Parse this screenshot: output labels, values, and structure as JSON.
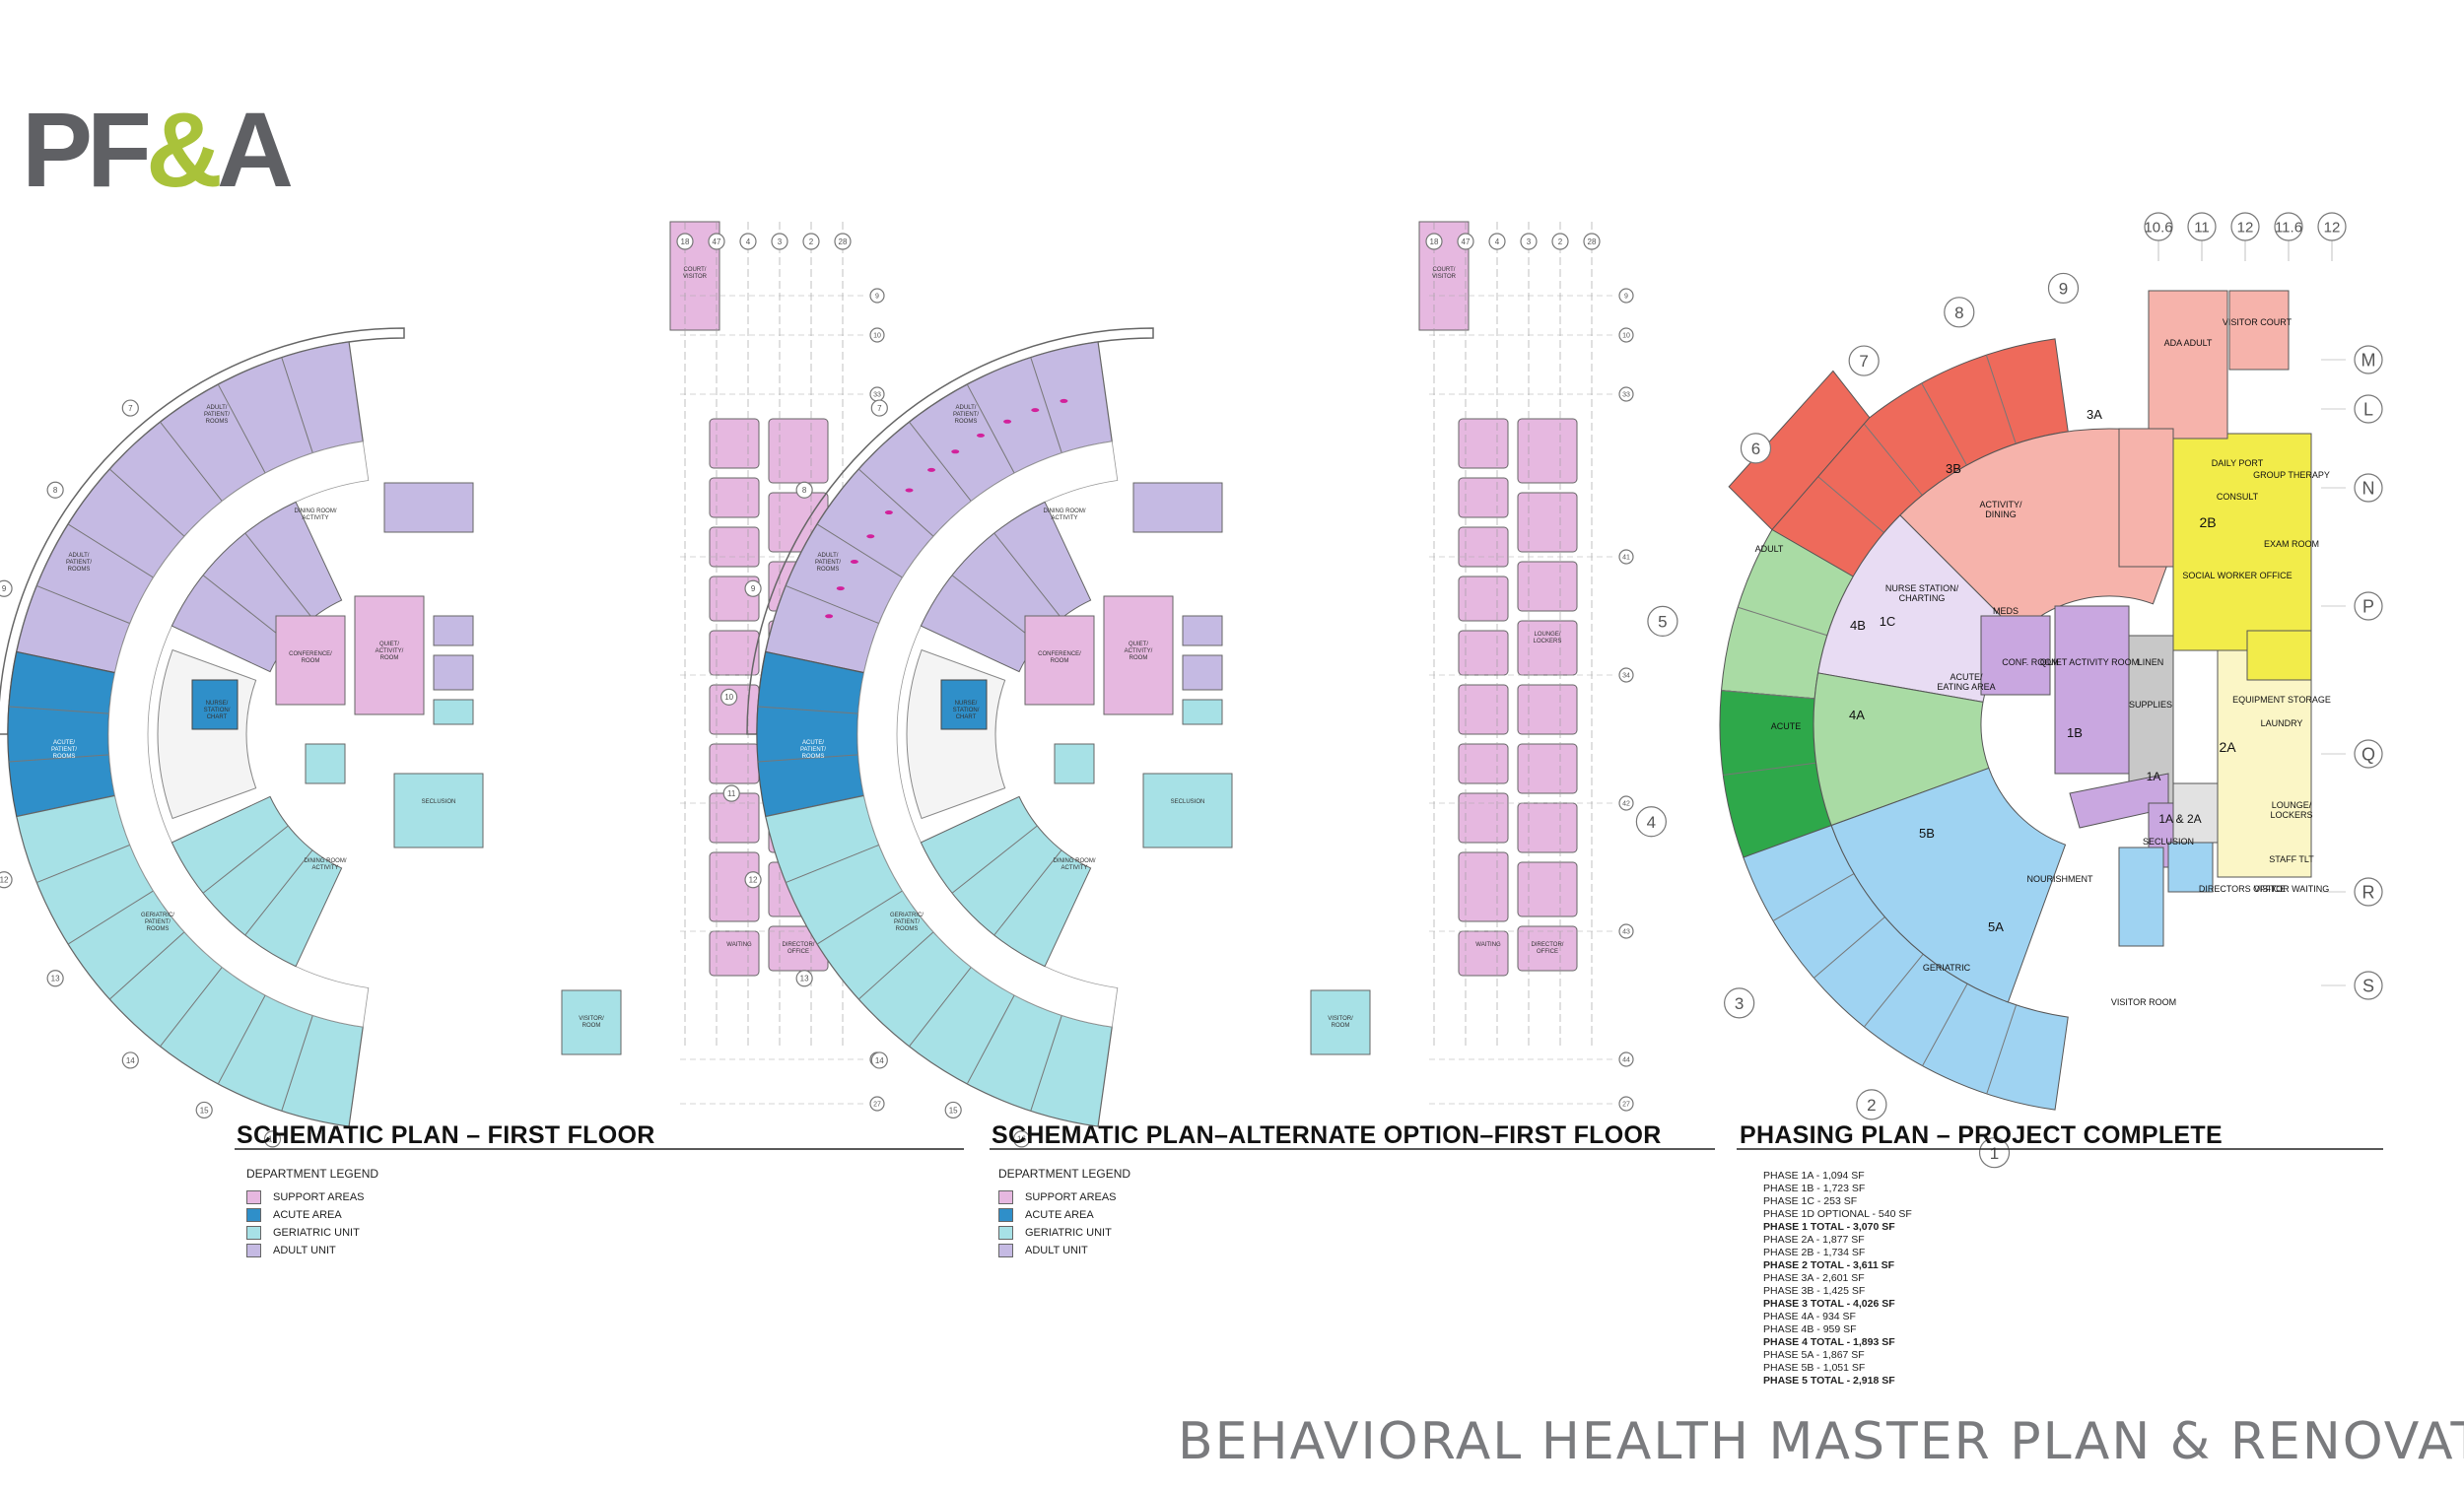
{
  "logo": {
    "part1": "PF",
    "part2": "&",
    "part3": "A"
  },
  "footer_title": "BEHAVIORAL HEALTH MASTER PLAN & RENOVATION",
  "colors": {
    "support": "#e6b8e0",
    "acute": "#2f8fc9",
    "geriatric": "#a7e1e6",
    "adult": "#c5bae3"
  },
  "plans": [
    {
      "title": "SCHEMATIC PLAN – FIRST FLOOR",
      "legend_title": "DEPARTMENT LEGEND",
      "legend": [
        "SUPPORT AREAS",
        "ACUTE AREA",
        "GERIATRIC UNIT",
        "ADULT UNIT"
      ]
    },
    {
      "title": "SCHEMATIC PLAN–ALTERNATE OPTION–FIRST FLOOR",
      "legend_title": "DEPARTMENT LEGEND",
      "legend": [
        "SUPPORT AREAS",
        "ACUTE AREA",
        "GERIATRIC UNIT",
        "ADULT UNIT"
      ]
    },
    {
      "title": "PHASING PLAN – PROJECT COMPLETE"
    }
  ],
  "phasing_list": [
    {
      "text": "PHASE 1A - 1,094 SF",
      "total": false
    },
    {
      "text": "PHASE 1B - 1,723 SF",
      "total": false
    },
    {
      "text": "PHASE 1C - 253 SF",
      "total": false
    },
    {
      "text": "PHASE 1D OPTIONAL - 540 SF",
      "total": false
    },
    {
      "text": "PHASE 1 TOTAL - 3,070 SF",
      "total": true
    },
    {
      "text": "PHASE 2A - 1,877 SF",
      "total": false
    },
    {
      "text": "PHASE 2B - 1,734 SF",
      "total": false
    },
    {
      "text": "PHASE 2 TOTAL - 3,611 SF",
      "total": true
    },
    {
      "text": "PHASE 3A - 2,601 SF",
      "total": false
    },
    {
      "text": "PHASE 3B - 1,425 SF",
      "total": false
    },
    {
      "text": "PHASE 3 TOTAL - 4,026 SF",
      "total": true
    },
    {
      "text": "PHASE 4A - 934 SF",
      "total": false
    },
    {
      "text": "PHASE 4B - 959 SF",
      "total": false
    },
    {
      "text": "PHASE 4 TOTAL - 1,893 SF",
      "total": true
    },
    {
      "text": "PHASE 5A - 1,867 SF",
      "total": false
    },
    {
      "text": "PHASE 5B - 1,051 SF",
      "total": false
    },
    {
      "text": "PHASE 5 TOTAL - 2,918 SF",
      "total": true
    }
  ],
  "phasing_colors": {
    "phase1": "#c9a7e0",
    "phase2": "#f2ec4a",
    "phase2_light": "#fbf6c6",
    "phase3": "#ee6a5b",
    "phase3_light": "#f6b3ab",
    "phase4": "#2ea84a",
    "phase4_light": "#a9dba4",
    "phase5": "#9fd3f2",
    "gray": "#c8c8c8"
  },
  "phasing_labels": [
    "1A",
    "1B",
    "1C",
    "1A & 2A",
    "2A",
    "2B",
    "3A",
    "3B",
    "4A",
    "4B",
    "5A",
    "5B"
  ],
  "room_labels_left": [
    "ADULT PATIENT ROOMS",
    "ACUTE PATIENT ROOMS",
    "GERIATRIC PATIENT ROOMS",
    "NURSE STATION CHART",
    "QUIET ACTIVITY ROOM",
    "CONFERENCE ROOM",
    "DINING ROOM ACTIVITY",
    "SECLUSION",
    "VISITOR ROOM",
    "DIRECTOR OFFICE",
    "WAITING",
    "LOUNGE/ LOCKERS"
  ],
  "room_labels_right": [
    "ADULT",
    "ACUTE",
    "GERIATRIC",
    "SECLUSION",
    "NOURISHMENT",
    "ACTIVITY/ DINING",
    "CONF. ROOM",
    "QUIET ACTIVITY ROOM",
    "NURSE STATION/ CHARTING",
    "MEDS",
    "LINEN",
    "SUPPLIES",
    "EQUIPMENT STORAGE",
    "LAUNDRY",
    "EXAM ROOM",
    "GROUP THERAPY",
    "DAILY PORT",
    "CONSULT",
    "SOCIAL WORKER OFFICE",
    "VISITOR WAITING",
    "VISITOR COURT",
    "VISITOR ROOM",
    "DIRECTORS OFFICE",
    "STAFF TLT",
    "LOUNGE/ LOCKERS",
    "ACUTE/EATING AREA",
    "ADA ADULT"
  ],
  "grid_letters": [
    "L",
    "M",
    "N",
    "P",
    "Q",
    "R",
    "S"
  ],
  "grid_numbers_top": [
    "10.6",
    "11",
    "12",
    "11.6",
    "12"
  ],
  "grid_numbers_arc": [
    "7",
    "8",
    "9",
    "6",
    "5",
    "4",
    "3",
    "2",
    "1"
  ]
}
